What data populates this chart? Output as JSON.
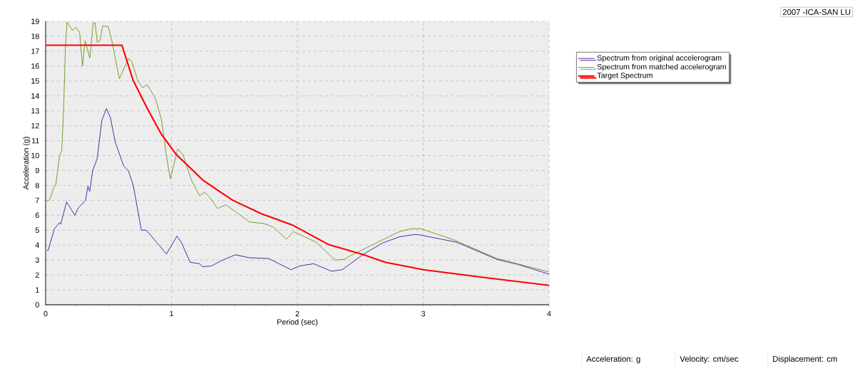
{
  "chart_data": {
    "type": "line",
    "xlabel": "Period (sec)",
    "ylabel": "Acceleration (g)",
    "xlim": [
      0,
      4
    ],
    "ylim": [
      0,
      19
    ],
    "xticks": [
      0,
      {
        "value": 0.25,
        "label": null
      },
      {
        "value": 0.5,
        "label": null
      },
      {
        "value": 0.75,
        "label": null
      },
      1,
      {
        "value": 1.25,
        "label": null
      },
      {
        "value": 1.5,
        "label": null
      },
      {
        "value": 1.75,
        "label": null
      },
      2,
      {
        "value": 2.25,
        "label": null
      },
      {
        "value": 2.5,
        "label": null
      },
      {
        "value": 2.75,
        "label": null
      },
      3,
      {
        "value": 3.25,
        "label": null
      },
      {
        "value": 3.5,
        "label": null
      },
      {
        "value": 3.75,
        "label": null
      },
      4
    ],
    "yticks": [
      0,
      1,
      2,
      3,
      4,
      5,
      6,
      7,
      8,
      9,
      10,
      11,
      12,
      13,
      14,
      15,
      16,
      17,
      18,
      19
    ],
    "grid": true,
    "legend": "right",
    "annotations": [
      "2007 -ICA-SAN LU",
      "Acceleration: g",
      "Velocity: cm/sec",
      "Displacement: cm"
    ],
    "series": [
      {
        "name": "Spectrum from original accelerogram",
        "color": "#4b1aa0",
        "x": [
          0.01,
          0.02,
          0.07,
          0.11,
          0.12,
          0.166,
          0.232,
          0.26,
          0.317,
          0.336,
          0.35,
          0.374,
          0.41,
          0.446,
          0.483,
          0.516,
          0.553,
          0.62,
          0.657,
          0.695,
          0.761,
          0.8,
          0.865,
          0.96,
          0.997,
          1.044,
          1.08,
          1.148,
          1.224,
          1.246,
          1.318,
          1.394,
          1.507,
          1.62,
          1.772,
          1.95,
          2.017,
          2.13,
          2.27,
          2.357,
          2.527,
          2.68,
          2.81,
          2.92,
          2.96,
          3.263,
          3.585,
          3.754,
          4.0
        ],
        "values": [
          3.65,
          3.65,
          5.1,
          5.5,
          5.4,
          6.9,
          6.0,
          6.5,
          7.0,
          7.95,
          7.6,
          9.0,
          9.8,
          12.35,
          13.15,
          12.5,
          10.9,
          9.3,
          9.0,
          8.05,
          5.0,
          5.0,
          4.35,
          3.4,
          3.95,
          4.6,
          4.15,
          2.85,
          2.75,
          2.55,
          2.6,
          2.95,
          3.35,
          3.15,
          3.1,
          2.35,
          2.6,
          2.75,
          2.25,
          2.35,
          3.4,
          4.15,
          4.55,
          4.7,
          4.7,
          4.2,
          3.05,
          2.7,
          2.05
        ]
      },
      {
        "name": "Spectrum from matched accelerogram",
        "color": "#6a9a22",
        "x": [
          0.01,
          0.034,
          0.062,
          0.081,
          0.11,
          0.128,
          0.143,
          0.157,
          0.17,
          0.213,
          0.242,
          0.27,
          0.293,
          0.314,
          0.351,
          0.378,
          0.393,
          0.41,
          0.432,
          0.453,
          0.497,
          0.525,
          0.586,
          0.657,
          0.685,
          0.733,
          0.771,
          0.808,
          0.874,
          0.922,
          0.96,
          0.991,
          1.05,
          1.092,
          1.158,
          1.224,
          1.262,
          1.3,
          1.366,
          1.432,
          1.62,
          1.734,
          1.81,
          1.913,
          1.97,
          2.149,
          2.3,
          2.376,
          2.413,
          2.64,
          2.81,
          2.905,
          2.98,
          3.245,
          3.585,
          4.0
        ],
        "values": [
          6.95,
          7.05,
          7.8,
          8.05,
          9.95,
          10.35,
          13.15,
          17.15,
          18.95,
          18.4,
          18.6,
          18.25,
          16.0,
          17.7,
          16.55,
          18.9,
          18.9,
          17.6,
          17.7,
          18.7,
          18.65,
          17.75,
          15.15,
          16.5,
          16.3,
          15.0,
          14.55,
          14.75,
          13.8,
          12.35,
          9.95,
          8.45,
          10.45,
          10.05,
          8.35,
          7.3,
          7.55,
          7.25,
          6.45,
          6.7,
          5.55,
          5.45,
          5.2,
          4.4,
          4.9,
          4.2,
          3.0,
          3.05,
          3.25,
          4.2,
          4.9,
          5.1,
          5.1,
          4.35,
          3.1,
          2.2
        ]
      },
      {
        "name": "Target Spectrum",
        "color": "#ff0000",
        "x": [
          0,
          0.606,
          0.695,
          0.808,
          0.922,
          1.035,
          1.25,
          1.39,
          1.488,
          1.715,
          1.96,
          2.244,
          2.508,
          2.697,
          3.0,
          3.509,
          4.0
        ],
        "values": [
          17.4,
          17.4,
          15.05,
          13.15,
          11.4,
          10.1,
          8.35,
          7.55,
          7.0,
          6.1,
          5.35,
          4.05,
          3.4,
          2.85,
          2.35,
          1.8,
          1.3
        ]
      }
    ]
  }
}
